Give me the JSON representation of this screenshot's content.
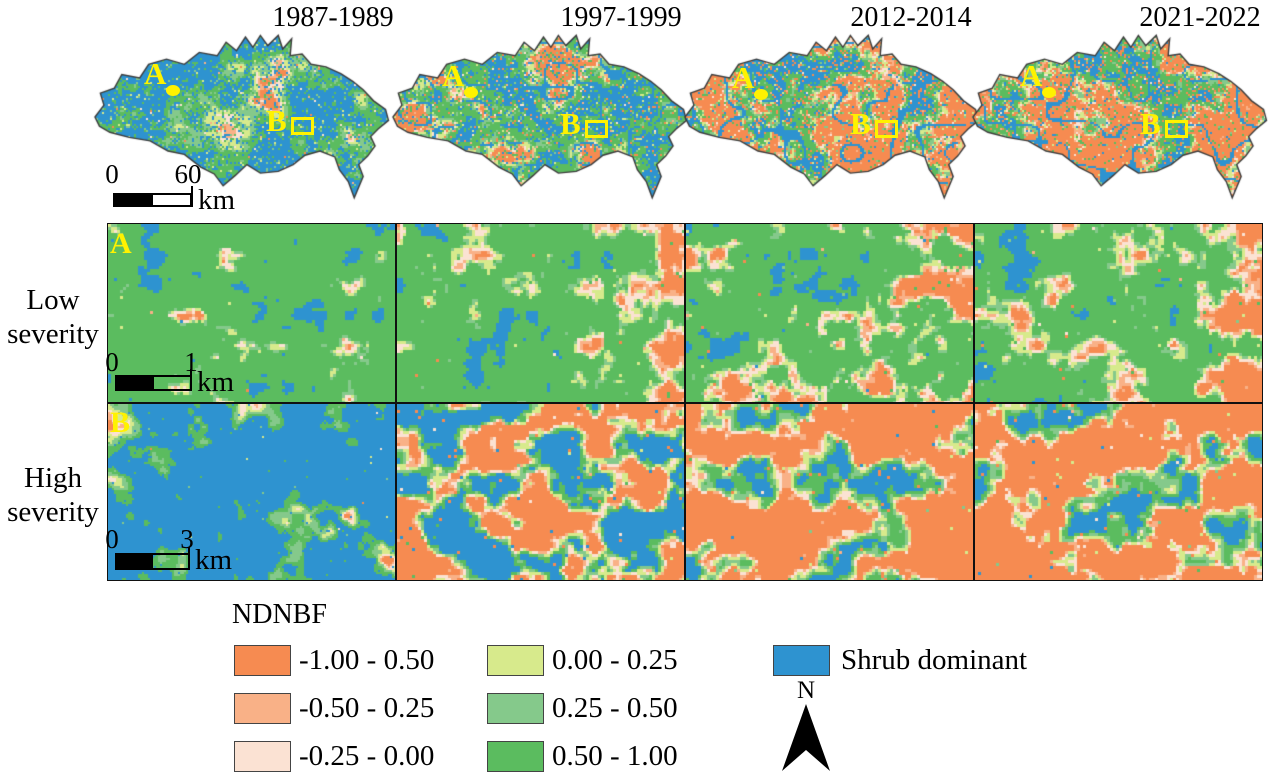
{
  "palette": {
    "orange": "#F68B51",
    "light_orange": "#F9B187",
    "pale_pink": "#FBE2D3",
    "yellow_green": "#D7EA8C",
    "mid_green": "#85C98B",
    "green": "#5BBC5F",
    "blue": "#2E93D0",
    "outline": "#3a3a3a",
    "annotation_yellow": "#FFF200"
  },
  "maps": [
    {
      "title": "1987-1989",
      "marker_a": "A",
      "marker_b": "B"
    },
    {
      "title": "1997-1999",
      "marker_a": "A",
      "marker_b": "B"
    },
    {
      "title": "2012-2014",
      "marker_a": "A",
      "marker_b": "B"
    },
    {
      "title": "2021-2022",
      "marker_a": "A",
      "marker_b": "B"
    }
  ],
  "top_scalebar": {
    "start": "0",
    "end": "60",
    "unit": "km"
  },
  "rows": [
    {
      "label": "Low severity",
      "letter": "A",
      "scalebar": {
        "start": "0",
        "end": "1",
        "unit": "km"
      }
    },
    {
      "label": "High severity",
      "letter": "B",
      "scalebar": {
        "start": "0",
        "end": "3",
        "unit": "km"
      }
    }
  ],
  "legend": {
    "title": "NDNBF",
    "items": [
      {
        "label": "-1.00 - 0.50",
        "color": "#F68B51"
      },
      {
        "label": "-0.50 - 0.25",
        "color": "#F9B187"
      },
      {
        "label": "-0.25 - 0.00",
        "color": "#FBE2D3"
      },
      {
        "label": "0.00 - 0.25",
        "color": "#D7EA8C"
      },
      {
        "label": "0.25 - 0.50",
        "color": "#85C98B"
      },
      {
        "label": "0.50 - 1.00",
        "color": "#5BBC5F"
      },
      {
        "label": "Shrub dominant",
        "color": "#2E93D0"
      }
    ],
    "north_label": "N"
  },
  "rasters": [
    {
      "id": "rc-map-0",
      "cell": 2,
      "scale": 22,
      "seed": 11,
      "clip": true,
      "speckle": 0.3,
      "weights": [
        0.01,
        0.01,
        0.015,
        0.06,
        0.13,
        0.275,
        0.5
      ]
    },
    {
      "id": "rc-map-1",
      "cell": 2,
      "scale": 20,
      "seed": 22,
      "clip": true,
      "speckle": 0.3,
      "veins": 0.94,
      "weights": [
        0.13,
        0.04,
        0.03,
        0.08,
        0.11,
        0.36,
        0.25
      ]
    },
    {
      "id": "rc-map-2",
      "cell": 2,
      "scale": 20,
      "seed": 33,
      "clip": true,
      "speckle": 0.3,
      "veins": 0.94,
      "weights": [
        0.43,
        0.05,
        0.04,
        0.08,
        0.08,
        0.19,
        0.13
      ]
    },
    {
      "id": "rc-map-3",
      "cell": 2,
      "scale": 20,
      "seed": 44,
      "clip": true,
      "speckle": 0.3,
      "veins": 0.94,
      "weights": [
        0.45,
        0.045,
        0.04,
        0.08,
        0.085,
        0.2,
        0.1
      ]
    },
    {
      "id": "rc-pa-0",
      "cell": 3,
      "scale": 13,
      "seed": 101,
      "speckle": 0.015,
      "weights": [
        0.003,
        0.003,
        0.014,
        0.02,
        0.03,
        0.87,
        0.06
      ]
    },
    {
      "id": "rc-pa-1",
      "cell": 3,
      "scale": 13,
      "seed": 202,
      "speckle": 0.015,
      "bias_right": 0.3,
      "weights": [
        0.055,
        0.03,
        0.05,
        0.06,
        0.05,
        0.705,
        0.05
      ]
    },
    {
      "id": "rc-pa-2",
      "cell": 3,
      "scale": 13,
      "seed": 303,
      "speckle": 0.02,
      "bias_right": 0.26,
      "weights": [
        0.085,
        0.045,
        0.06,
        0.07,
        0.06,
        0.63,
        0.05
      ]
    },
    {
      "id": "rc-pa-3",
      "cell": 3,
      "scale": 13,
      "seed": 404,
      "speckle": 0.02,
      "bias_right": 0.34,
      "weights": [
        0.1,
        0.04,
        0.065,
        0.08,
        0.07,
        0.595,
        0.05
      ]
    },
    {
      "id": "rc-pb-0",
      "cell": 2,
      "scale": 24,
      "seed": 505,
      "speckle": 0.03,
      "weights": [
        0.003,
        0.003,
        0.01,
        0.018,
        0.05,
        0.126,
        0.79
      ]
    },
    {
      "id": "rc-pb-1",
      "cell": 3,
      "scale": 17,
      "seed": 606,
      "speckle": 0.02,
      "weights": [
        0.32,
        0.05,
        0.06,
        0.08,
        0.06,
        0.1,
        0.33
      ]
    },
    {
      "id": "rc-pb-2",
      "cell": 3,
      "scale": 17,
      "seed": 707,
      "speckle": 0.02,
      "weights": [
        0.56,
        0.045,
        0.05,
        0.07,
        0.07,
        0.1,
        0.105
      ]
    },
    {
      "id": "rc-pb-3",
      "cell": 3,
      "scale": 17,
      "seed": 808,
      "speckle": 0.02,
      "weights": [
        0.575,
        0.04,
        0.05,
        0.07,
        0.07,
        0.09,
        0.105
      ]
    }
  ]
}
